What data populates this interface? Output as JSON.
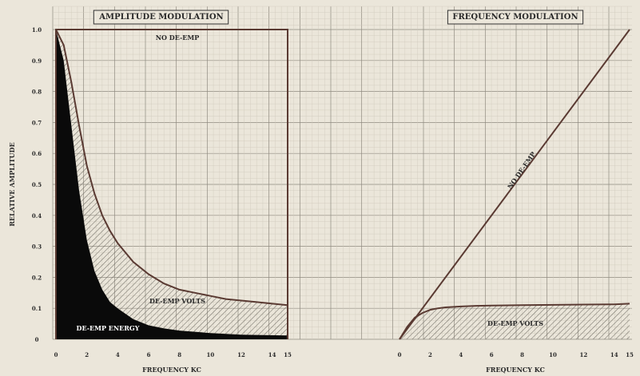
{
  "ylabel": "RELATIVE AMPLITUDE",
  "y_ticks": [
    "1.0",
    "0.9",
    "0.8",
    "0.7",
    "0.6",
    "0.5",
    "0.4",
    "0.3",
    "0.2",
    "0.1",
    "0"
  ],
  "colors": {
    "paper": "#ebe6da",
    "grid_minor": "#cfc9bb",
    "grid_major": "#8f8a80",
    "curve": "#5a3a32",
    "energy_fill": "#0a0a0a",
    "hatch": "#6e6a62"
  },
  "chart_data": [
    {
      "type": "area",
      "title": "AMPLITUDE MODULATION",
      "xlabel": "FREQUENCY  KC",
      "ylabel": "RELATIVE AMPLITUDE",
      "x_ticks": [
        "0",
        "2",
        "4",
        "6",
        "8",
        "10",
        "12",
        "14",
        "15"
      ],
      "xlim": [
        0,
        15
      ],
      "ylim": [
        0,
        1.0
      ],
      "grid": true,
      "series": [
        {
          "name": "NO DE-EMP",
          "x": [
            0,
            15
          ],
          "y": [
            1.0,
            1.0
          ]
        },
        {
          "name": "DE-EMP VOLTS",
          "x": [
            0,
            0.5,
            1,
            1.5,
            2,
            2.5,
            3,
            3.5,
            4,
            5,
            6,
            7,
            8,
            9,
            10,
            11,
            12,
            13,
            14,
            15
          ],
          "y": [
            1.0,
            0.95,
            0.83,
            0.69,
            0.56,
            0.47,
            0.4,
            0.35,
            0.31,
            0.25,
            0.21,
            0.18,
            0.16,
            0.15,
            0.14,
            0.13,
            0.125,
            0.12,
            0.115,
            0.11
          ]
        },
        {
          "name": "DE-EMP ENERGY",
          "x": [
            0,
            0.5,
            1,
            1.5,
            2,
            2.5,
            3,
            3.5,
            4,
            5,
            6,
            7,
            8,
            10,
            12,
            15
          ],
          "y": [
            1.0,
            0.9,
            0.69,
            0.48,
            0.32,
            0.22,
            0.16,
            0.12,
            0.1,
            0.065,
            0.045,
            0.035,
            0.028,
            0.02,
            0.015,
            0.012
          ]
        }
      ]
    },
    {
      "type": "line",
      "title": "FREQUENCY MODULATION",
      "xlabel": "FREQUENCY  KC",
      "ylabel": "RELATIVE AMPLITUDE",
      "x_ticks": [
        "0",
        "2",
        "4",
        "6",
        "8",
        "10",
        "12",
        "14",
        "15"
      ],
      "xlim": [
        0,
        15
      ],
      "ylim": [
        0,
        1.0
      ],
      "grid": true,
      "series": [
        {
          "name": "NO DE-EMP",
          "x": [
            0,
            15
          ],
          "y": [
            0,
            1.0
          ]
        },
        {
          "name": "DE-EMP VOLTS",
          "x": [
            0,
            0.5,
            1,
            1.5,
            2,
            2.5,
            3,
            4,
            5,
            6,
            8,
            10,
            12,
            14,
            15
          ],
          "y": [
            0,
            0.04,
            0.07,
            0.085,
            0.095,
            0.1,
            0.103,
            0.106,
            0.108,
            0.109,
            0.11,
            0.111,
            0.112,
            0.113,
            0.115
          ]
        }
      ]
    }
  ]
}
